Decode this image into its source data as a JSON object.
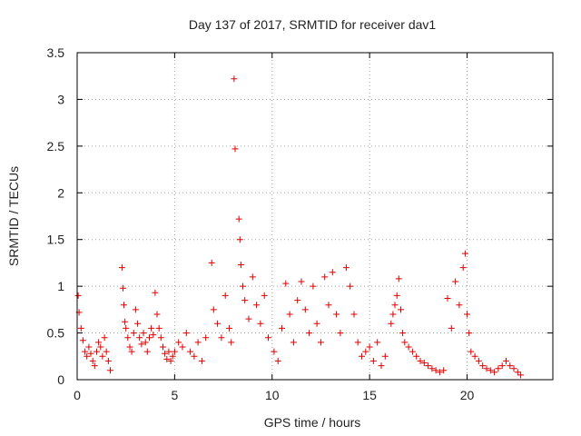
{
  "chart_data": {
    "type": "scatter",
    "title": "Day 137 of 2017, SRMTID for receiver dav1",
    "xlabel": "GPS time / hours",
    "ylabel": "SRMTID / TECUs",
    "xlim": [
      0,
      24.4
    ],
    "ylim": [
      0,
      3.5
    ],
    "xticks": [
      0,
      5,
      10,
      15,
      20
    ],
    "yticks": [
      0,
      0.5,
      1,
      1.5,
      2,
      2.5,
      3,
      3.5
    ],
    "xtick_labels": [
      "0",
      "5",
      "10",
      "15",
      "20"
    ],
    "ytick_labels": [
      "0",
      "0.5",
      "1",
      "1.5",
      "2",
      "2.5",
      "3",
      "3.5"
    ],
    "grid": true,
    "marker": "+",
    "series": [
      {
        "name": "SRMTID",
        "color": "#e00000",
        "points": [
          [
            0.05,
            0.9
          ],
          [
            0.1,
            0.72
          ],
          [
            0.2,
            0.55
          ],
          [
            0.3,
            0.42
          ],
          [
            0.4,
            0.3
          ],
          [
            0.5,
            0.25
          ],
          [
            0.6,
            0.35
          ],
          [
            0.7,
            0.28
          ],
          [
            0.8,
            0.2
          ],
          [
            0.9,
            0.15
          ],
          [
            1.0,
            0.3
          ],
          [
            1.1,
            0.4
          ],
          [
            1.2,
            0.35
          ],
          [
            1.3,
            0.25
          ],
          [
            1.4,
            0.45
          ],
          [
            1.5,
            0.3
          ],
          [
            1.6,
            0.2
          ],
          [
            1.7,
            0.1
          ],
          [
            2.3,
            1.2
          ],
          [
            2.35,
            0.98
          ],
          [
            2.4,
            0.8
          ],
          [
            2.45,
            0.62
          ],
          [
            2.5,
            0.55
          ],
          [
            2.6,
            0.45
          ],
          [
            2.7,
            0.35
          ],
          [
            2.8,
            0.3
          ],
          [
            2.9,
            0.5
          ],
          [
            3.0,
            0.75
          ],
          [
            3.1,
            0.6
          ],
          [
            3.2,
            0.45
          ],
          [
            3.3,
            0.38
          ],
          [
            3.4,
            0.5
          ],
          [
            3.5,
            0.4
          ],
          [
            3.6,
            0.3
          ],
          [
            3.7,
            0.45
          ],
          [
            3.8,
            0.55
          ],
          [
            3.9,
            0.48
          ],
          [
            4.0,
            0.93
          ],
          [
            4.1,
            0.7
          ],
          [
            4.2,
            0.55
          ],
          [
            4.3,
            0.45
          ],
          [
            4.4,
            0.35
          ],
          [
            4.5,
            0.28
          ],
          [
            4.6,
            0.22
          ],
          [
            4.7,
            0.3
          ],
          [
            4.8,
            0.2
          ],
          [
            4.9,
            0.25
          ],
          [
            5.0,
            0.3
          ],
          [
            5.2,
            0.4
          ],
          [
            5.4,
            0.35
          ],
          [
            5.6,
            0.5
          ],
          [
            5.8,
            0.3
          ],
          [
            6.0,
            0.25
          ],
          [
            6.2,
            0.4
          ],
          [
            6.4,
            0.2
          ],
          [
            6.6,
            0.45
          ],
          [
            6.9,
            1.25
          ],
          [
            7.0,
            0.75
          ],
          [
            7.2,
            0.6
          ],
          [
            7.4,
            0.45
          ],
          [
            7.6,
            0.9
          ],
          [
            7.8,
            0.55
          ],
          [
            7.9,
            0.4
          ],
          [
            8.05,
            3.22
          ],
          [
            8.1,
            2.47
          ],
          [
            8.3,
            1.72
          ],
          [
            8.35,
            1.5
          ],
          [
            8.4,
            1.23
          ],
          [
            8.5,
            1.0
          ],
          [
            8.6,
            0.85
          ],
          [
            8.8,
            0.65
          ],
          [
            9.0,
            1.1
          ],
          [
            9.2,
            0.8
          ],
          [
            9.4,
            0.6
          ],
          [
            9.6,
            0.9
          ],
          [
            9.8,
            0.45
          ],
          [
            10.1,
            0.3
          ],
          [
            10.3,
            0.2
          ],
          [
            10.5,
            0.55
          ],
          [
            10.7,
            1.03
          ],
          [
            10.9,
            0.7
          ],
          [
            11.1,
            0.4
          ],
          [
            11.3,
            0.85
          ],
          [
            11.5,
            1.05
          ],
          [
            11.7,
            0.75
          ],
          [
            11.9,
            0.5
          ],
          [
            12.1,
            1.0
          ],
          [
            12.3,
            0.6
          ],
          [
            12.5,
            0.4
          ],
          [
            12.7,
            1.1
          ],
          [
            12.9,
            0.8
          ],
          [
            13.1,
            1.15
          ],
          [
            13.3,
            0.7
          ],
          [
            13.5,
            0.5
          ],
          [
            13.8,
            1.2
          ],
          [
            14.0,
            1.0
          ],
          [
            14.2,
            0.7
          ],
          [
            14.4,
            0.4
          ],
          [
            14.6,
            0.25
          ],
          [
            14.8,
            0.3
          ],
          [
            15.0,
            0.35
          ],
          [
            15.2,
            0.2
          ],
          [
            15.4,
            0.4
          ],
          [
            15.6,
            0.15
          ],
          [
            15.8,
            0.25
          ],
          [
            16.1,
            0.6
          ],
          [
            16.2,
            0.7
          ],
          [
            16.3,
            0.8
          ],
          [
            16.4,
            0.9
          ],
          [
            16.5,
            1.08
          ],
          [
            16.6,
            0.75
          ],
          [
            16.7,
            0.5
          ],
          [
            16.8,
            0.4
          ],
          [
            17.0,
            0.35
          ],
          [
            17.2,
            0.3
          ],
          [
            17.4,
            0.25
          ],
          [
            17.6,
            0.2
          ],
          [
            17.8,
            0.18
          ],
          [
            18.0,
            0.15
          ],
          [
            18.2,
            0.12
          ],
          [
            18.4,
            0.1
          ],
          [
            18.6,
            0.08
          ],
          [
            18.8,
            0.1
          ],
          [
            19.0,
            0.87
          ],
          [
            19.2,
            0.55
          ],
          [
            19.4,
            1.05
          ],
          [
            19.6,
            0.8
          ],
          [
            19.8,
            1.2
          ],
          [
            19.9,
            1.35
          ],
          [
            20.0,
            0.7
          ],
          [
            20.1,
            0.5
          ],
          [
            20.2,
            0.3
          ],
          [
            20.4,
            0.25
          ],
          [
            20.6,
            0.2
          ],
          [
            20.8,
            0.15
          ],
          [
            21.0,
            0.12
          ],
          [
            21.2,
            0.1
          ],
          [
            21.4,
            0.08
          ],
          [
            21.6,
            0.12
          ],
          [
            21.8,
            0.15
          ],
          [
            22.0,
            0.2
          ],
          [
            22.2,
            0.15
          ],
          [
            22.4,
            0.12
          ],
          [
            22.6,
            0.08
          ],
          [
            22.75,
            0.05
          ]
        ]
      }
    ]
  }
}
